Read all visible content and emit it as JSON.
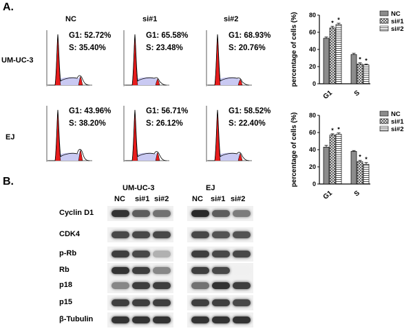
{
  "figure": {
    "panel_a": "A.",
    "panel_b": "B.",
    "cell_lines": [
      "UM-UC-3",
      "EJ"
    ],
    "conditions": [
      "NC",
      "si#1",
      "si#2"
    ],
    "flow": [
      [
        {
          "g1": "G1: 52.72%",
          "s": "S: 35.40%"
        },
        {
          "g1": "G1: 65.58%",
          "s": "S: 23.48%"
        },
        {
          "g1": "G1: 68.93%",
          "s": "S: 20.76%"
        }
      ],
      [
        {
          "g1": "G1: 43.96%",
          "s": "S: 38.20%"
        },
        {
          "g1": "G1: 56.71%",
          "s": "S: 26.12%"
        },
        {
          "g1": "G1: 58.52%",
          "s": "S: 22.40%"
        }
      ]
    ],
    "blot": {
      "groups": [
        "UM-UC-3",
        "EJ"
      ],
      "lanes": [
        "NC",
        "si#1",
        "si#2"
      ],
      "proteins": [
        "Cyclin D1",
        "CDK4",
        "p-Rb",
        "Rb",
        "p18",
        "p15",
        "β-Tubulin"
      ],
      "band_intensity": {
        "UM-UC-3": [
          [
            0.9,
            0.7,
            0.6
          ],
          [
            0.8,
            0.8,
            0.8
          ],
          [
            0.85,
            0.8,
            0.3
          ],
          [
            0.9,
            0.85,
            0.5
          ],
          [
            0.5,
            0.85,
            0.85
          ],
          [
            0.85,
            0.85,
            0.85
          ],
          [
            0.9,
            0.9,
            0.9
          ]
        ],
        "EJ": [
          [
            0.95,
            0.7,
            0.55
          ],
          [
            0.8,
            0.75,
            0.75
          ],
          [
            0.85,
            0.8,
            0.8
          ],
          [
            0.85,
            0.8,
            0.0
          ],
          [
            0.6,
            0.9,
            0.85
          ],
          [
            0.85,
            0.85,
            0.8
          ],
          [
            0.9,
            0.9,
            0.9
          ]
        ]
      }
    }
  },
  "chart_data": [
    {
      "type": "bar",
      "cell_line": "UM-UC-3",
      "categories": [
        "G1",
        "S"
      ],
      "series": [
        {
          "name": "NC",
          "values": [
            53,
            34
          ],
          "errors": [
            1.5,
            1.5
          ]
        },
        {
          "name": "si#1",
          "values": [
            65,
            23
          ],
          "errors": [
            2,
            1.5
          ]
        },
        {
          "name": "si#2",
          "values": [
            69,
            22
          ],
          "errors": [
            1.5,
            1
          ]
        }
      ],
      "significance": [
        [
          false,
          true,
          true
        ],
        [
          false,
          true,
          true
        ]
      ],
      "ylabel": "percentage of cells (%)",
      "ylim": [
        0,
        80
      ],
      "yticks": [
        0,
        20,
        40,
        60,
        80
      ],
      "legend": "top-right"
    },
    {
      "type": "bar",
      "cell_line": "EJ",
      "categories": [
        "G1",
        "S"
      ],
      "series": [
        {
          "name": "NC",
          "values": [
            43,
            38
          ],
          "errors": [
            2,
            1
          ]
        },
        {
          "name": "si#1",
          "values": [
            57,
            26
          ],
          "errors": [
            1.5,
            1.5
          ]
        },
        {
          "name": "si#2",
          "values": [
            58,
            23
          ],
          "errors": [
            1.5,
            2
          ]
        }
      ],
      "significance": [
        [
          false,
          true,
          true
        ],
        [
          false,
          true,
          true
        ]
      ],
      "ylabel": "percentage of cells (%)",
      "ylim": [
        0,
        80
      ],
      "yticks": [
        0,
        20,
        40,
        60,
        80
      ],
      "legend": "top-right"
    }
  ]
}
